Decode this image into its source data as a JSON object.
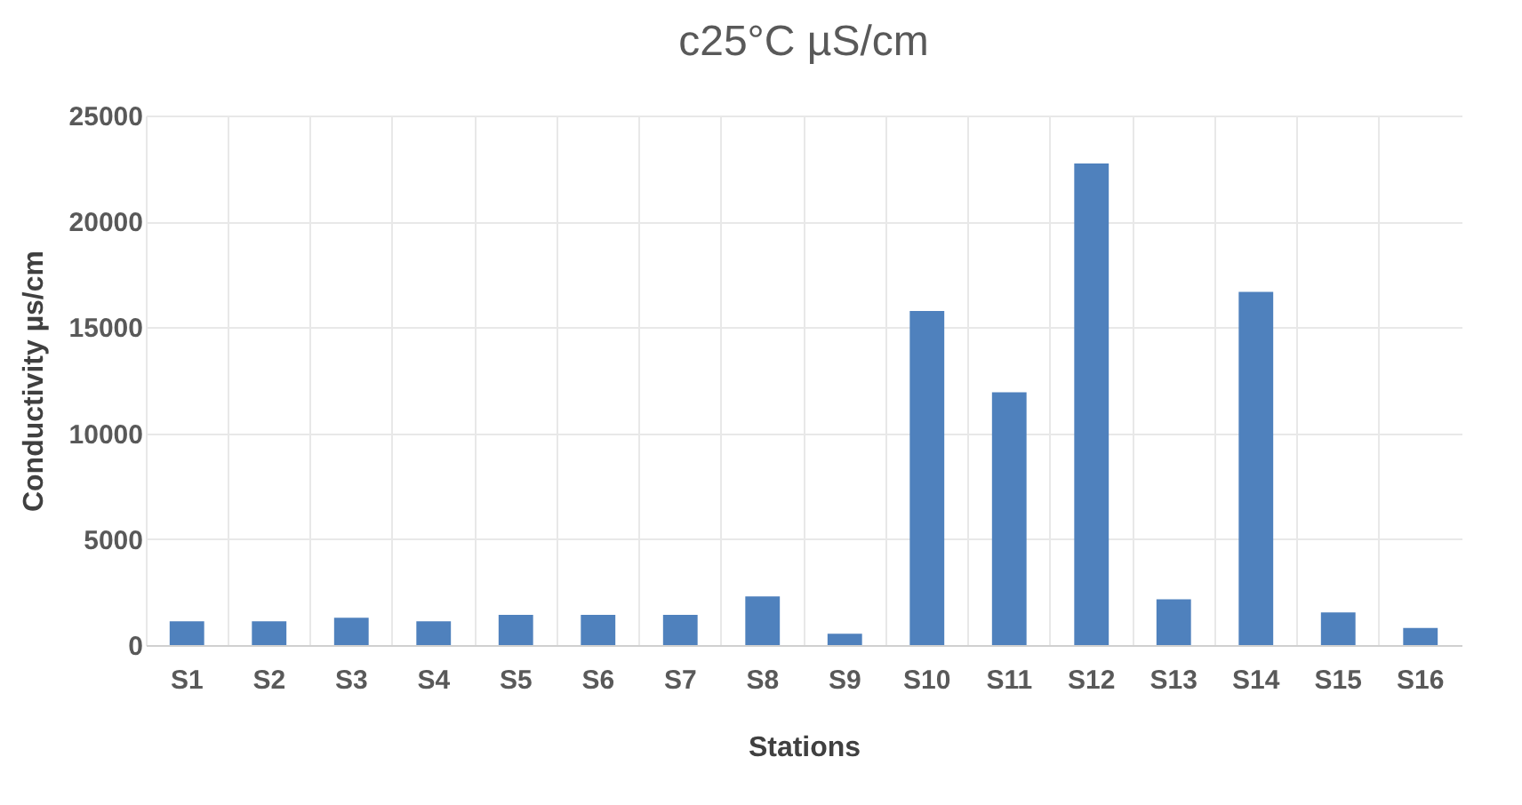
{
  "chart_data": {
    "type": "bar",
    "title": "c25°C µS/cm",
    "xlabel": "Stations",
    "ylabel": "Conductivity  µs/cm",
    "categories": [
      "S1",
      "S2",
      "S3",
      "S4",
      "S5",
      "S6",
      "S7",
      "S8",
      "S9",
      "S10",
      "S11",
      "S12",
      "S13",
      "S14",
      "S15",
      "S16"
    ],
    "values": [
      1120,
      1120,
      1290,
      1120,
      1430,
      1430,
      1430,
      2300,
      530,
      15770,
      11930,
      22740,
      2160,
      16670,
      1540,
      810
    ],
    "color": "#4f81bd",
    "ylim": [
      0,
      25000
    ],
    "yticks": [
      0,
      5000,
      10000,
      15000,
      20000,
      25000
    ],
    "grid": true
  }
}
